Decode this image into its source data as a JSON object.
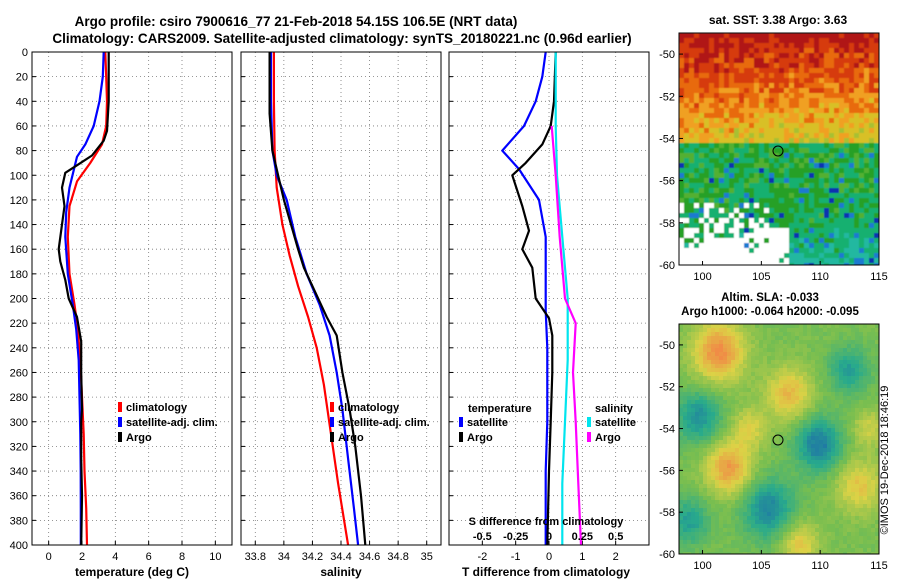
{
  "header": {
    "line1": "Argo profile: csiro 7900616_77 21-Feb-2018 54.15S 106.5E (NRT data)",
    "line2": "Climatology: CARS2009. Satellite-adjusted climatology: synTS_20180221.nc (0.96d earlier)"
  },
  "watermark": "©IMOS 19-Dec-2018 18:46:19",
  "colors": {
    "climatology": "#ff0000",
    "satellite": "#0000ff",
    "argo": "#000000",
    "sal_satellite": "#00e5ee",
    "sal_argo": "#ff00ff",
    "grid": "#777777"
  },
  "chart_data": [
    {
      "type": "line",
      "name": "temperature",
      "xlabel": "temperature (deg C)",
      "xlim": [
        -1,
        11
      ],
      "xticks": [
        "0",
        "2",
        "4",
        "6",
        "8",
        "10"
      ],
      "ylim": [
        0,
        400
      ],
      "yticks": [
        "0",
        "20",
        "40",
        "60",
        "80",
        "100",
        "120",
        "140",
        "160",
        "180",
        "200",
        "220",
        "240",
        "260",
        "280",
        "300",
        "320",
        "340",
        "360",
        "380",
        "400"
      ],
      "legend": [
        "climatology",
        "satellite-adj. clim.",
        "Argo"
      ],
      "series": [
        {
          "name": "climatology",
          "color": "#ff0000",
          "points": [
            [
              3.4,
              0
            ],
            [
              3.45,
              20
            ],
            [
              3.5,
              40
            ],
            [
              3.45,
              60
            ],
            [
              3.2,
              75
            ],
            [
              2.5,
              90
            ],
            [
              1.7,
              105
            ],
            [
              1.25,
              125
            ],
            [
              1.15,
              150
            ],
            [
              1.25,
              180
            ],
            [
              1.55,
              205
            ],
            [
              1.75,
              225
            ],
            [
              1.9,
              250
            ],
            [
              2.0,
              280
            ],
            [
              2.1,
              310
            ],
            [
              2.15,
              340
            ],
            [
              2.25,
              370
            ],
            [
              2.3,
              400
            ]
          ]
        },
        {
          "name": "satellite-adj. clim.",
          "color": "#0000ff",
          "points": [
            [
              3.3,
              0
            ],
            [
              3.25,
              20
            ],
            [
              3.05,
              40
            ],
            [
              2.7,
              60
            ],
            [
              2.2,
              75
            ],
            [
              1.7,
              85
            ],
            [
              1.25,
              110
            ],
            [
              1.05,
              130
            ],
            [
              1.0,
              150
            ],
            [
              1.15,
              180
            ],
            [
              1.45,
              205
            ],
            [
              1.65,
              225
            ],
            [
              1.8,
              250
            ],
            [
              1.85,
              280
            ],
            [
              1.9,
              310
            ],
            [
              1.92,
              340
            ],
            [
              1.93,
              370
            ],
            [
              1.93,
              400
            ]
          ]
        },
        {
          "name": "Argo",
          "color": "#000000",
          "points": [
            [
              3.6,
              0
            ],
            [
              3.6,
              40
            ],
            [
              3.5,
              64
            ],
            [
              3.3,
              72
            ],
            [
              2.6,
              84
            ],
            [
              1.8,
              91
            ],
            [
              1.0,
              98
            ],
            [
              0.8,
              110
            ],
            [
              0.95,
              125
            ],
            [
              0.8,
              140
            ],
            [
              0.6,
              160
            ],
            [
              0.7,
              170
            ],
            [
              1.0,
              185
            ],
            [
              1.2,
              200
            ],
            [
              1.7,
              215
            ],
            [
              1.95,
              235
            ],
            [
              1.95,
              260
            ],
            [
              2.0,
              290
            ],
            [
              1.95,
              300
            ],
            [
              1.95,
              330
            ],
            [
              2.0,
              360
            ],
            [
              1.95,
              400
            ]
          ]
        }
      ]
    },
    {
      "type": "line",
      "name": "salinity",
      "xlabel": "salinity",
      "xlim": [
        33.7,
        35.1
      ],
      "xticks": [
        "33.8",
        "34",
        "34.2",
        "34.4",
        "34.6",
        "34.8",
        "35"
      ],
      "ylim": [
        0,
        400
      ],
      "legend": [
        "climatology",
        "satellite-adj. clim.",
        "Argo"
      ],
      "series": [
        {
          "name": "climatology",
          "color": "#ff0000",
          "points": [
            [
              33.93,
              0
            ],
            [
              33.93,
              40
            ],
            [
              33.935,
              80
            ],
            [
              33.95,
              110
            ],
            [
              33.99,
              140
            ],
            [
              34.04,
              165
            ],
            [
              34.1,
              190
            ],
            [
              34.17,
              215
            ],
            [
              34.23,
              240
            ],
            [
              34.28,
              270
            ],
            [
              34.33,
              310
            ],
            [
              34.38,
              350
            ],
            [
              34.45,
              400
            ]
          ]
        },
        {
          "name": "satellite-adj. clim.",
          "color": "#0000ff",
          "points": [
            [
              33.91,
              0
            ],
            [
              33.91,
              40
            ],
            [
              33.92,
              80
            ],
            [
              33.95,
              100
            ],
            [
              34.02,
              120
            ],
            [
              34.08,
              150
            ],
            [
              34.16,
              180
            ],
            [
              34.25,
              205
            ],
            [
              34.32,
              230
            ],
            [
              34.37,
              260
            ],
            [
              34.41,
              290
            ],
            [
              34.45,
              330
            ],
            [
              34.49,
              370
            ],
            [
              34.52,
              400
            ]
          ]
        },
        {
          "name": "Argo",
          "color": "#000000",
          "points": [
            [
              33.9,
              0
            ],
            [
              33.9,
              50
            ],
            [
              33.92,
              80
            ],
            [
              33.96,
              100
            ],
            [
              34.0,
              120
            ],
            [
              34.05,
              140
            ],
            [
              34.1,
              160
            ],
            [
              34.14,
              175
            ],
            [
              34.22,
              195
            ],
            [
              34.3,
              215
            ],
            [
              34.37,
              230
            ],
            [
              34.41,
              260
            ],
            [
              34.46,
              290
            ],
            [
              34.5,
              320
            ],
            [
              34.54,
              360
            ],
            [
              34.57,
              400
            ]
          ]
        }
      ]
    },
    {
      "type": "line",
      "name": "difference",
      "xlabel": "T difference from climatology",
      "xlim": [
        -3,
        3
      ],
      "xticks": [
        "-2",
        "-1",
        "0",
        "1",
        "2"
      ],
      "top_axis_label": "S difference from climatology",
      "top_xticks": [
        "-0.5",
        "-0.25",
        "0",
        "0.25",
        "0.5"
      ],
      "ylim": [
        0,
        400
      ],
      "legend_temperature": {
        "title": "temperature",
        "items": [
          "satellite",
          "Argo"
        ]
      },
      "legend_salinity": {
        "title": "salinity",
        "items": [
          "satellite",
          "Argo"
        ]
      },
      "series": [
        {
          "name": "T satellite",
          "color": "#0000ff",
          "points": [
            [
              -0.1,
              0
            ],
            [
              -0.2,
              20
            ],
            [
              -0.4,
              40
            ],
            [
              -0.75,
              60
            ],
            [
              -1.4,
              80
            ],
            [
              -0.9,
              95
            ],
            [
              -0.3,
              120
            ],
            [
              -0.1,
              150
            ],
            [
              -0.1,
              180
            ],
            [
              -0.1,
              210
            ],
            [
              -0.05,
              240
            ],
            [
              -0.05,
              300
            ],
            [
              -0.1,
              340
            ],
            [
              -0.1,
              400
            ]
          ]
        },
        {
          "name": "T Argo",
          "color": "#000000",
          "points": [
            [
              0.2,
              0
            ],
            [
              0.15,
              40
            ],
            [
              0.05,
              60
            ],
            [
              -0.2,
              75
            ],
            [
              -0.7,
              90
            ],
            [
              -1.1,
              100
            ],
            [
              -0.8,
              125
            ],
            [
              -0.6,
              145
            ],
            [
              -0.8,
              160
            ],
            [
              -0.5,
              175
            ],
            [
              -0.4,
              200
            ],
            [
              0.0,
              216
            ],
            [
              0.1,
              230
            ],
            [
              0.1,
              260
            ],
            [
              0.05,
              300
            ],
            [
              0.0,
              340
            ],
            [
              -0.05,
              400
            ]
          ]
        },
        {
          "name": "S satellite",
          "color": "#00e5ee",
          "points": [
            [
              0.05,
              0
            ],
            [
              0.05,
              60
            ],
            [
              0.06,
              100
            ],
            [
              0.1,
              150
            ],
            [
              0.14,
              200
            ],
            [
              0.14,
              250
            ],
            [
              0.12,
              300
            ],
            [
              0.1,
              350
            ],
            [
              0.1,
              400
            ]
          ]
        },
        {
          "name": "S Argo",
          "color": "#ff00ff",
          "points": [
            [
              0.02,
              60
            ],
            [
              0.05,
              100
            ],
            [
              0.08,
              150
            ],
            [
              0.12,
              200
            ],
            [
              0.2,
              220
            ],
            [
              0.18,
              260
            ],
            [
              0.2,
              300
            ],
            [
              0.22,
              350
            ],
            [
              0.24,
              400
            ]
          ]
        }
      ]
    },
    {
      "type": "heatmap",
      "name": "sst-map",
      "title": "sat. SST: 3.38 Argo: 3.63",
      "xticks": [
        "100",
        "105",
        "110",
        "115"
      ],
      "yticks": [
        "-50",
        "-52",
        "-54",
        "-56",
        "-58",
        "-60"
      ],
      "marker": {
        "lon": 106.5,
        "lat": -54.15
      }
    },
    {
      "type": "heatmap",
      "name": "sla-map",
      "title": "Altim. SLA: -0.033",
      "subtitle": "Argo h1000: -0.064 h2000: -0.095",
      "xticks": [
        "100",
        "105",
        "110",
        "115"
      ],
      "yticks": [
        "-50",
        "-52",
        "-54",
        "-56",
        "-58",
        "-60"
      ],
      "marker": {
        "lon": 106.5,
        "lat": -54.15
      }
    }
  ]
}
